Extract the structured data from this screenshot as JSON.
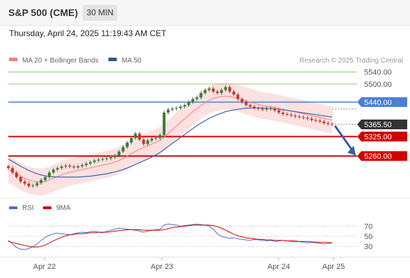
{
  "header": {
    "title": "S&P 500 (CME)",
    "timeframe": "30 MIN"
  },
  "timestamp": "Thursday, April 24, 2025 11:19:43 AM CET",
  "legend": [
    {
      "label": "MA 20 + Bollinger Bands",
      "color": "#f08080"
    },
    {
      "label": "MA 50",
      "color": "#2f5597"
    }
  ],
  "credit": "Research © 2025 Trading Central",
  "colors": {
    "up": "#3a7d3a",
    "down": "#c0392b",
    "band": "#f9c8c8",
    "ma20": "#f08080",
    "ma50": "#3c63b5",
    "support": "#d00000",
    "resistance": "#8ac96a",
    "pivot": "#4a7fd4",
    "current": "#333333"
  },
  "chart_data": [
    {
      "type": "line",
      "title": "S&P 500 (CME) 30 MIN",
      "x_ticks": [
        "Apr 22",
        "Apr 23",
        "Apr 24",
        "Apr 25"
      ],
      "ylim": [
        5120,
        5560
      ],
      "levels": [
        {
          "value": 5540.0,
          "label": "5540.00",
          "kind": "resistance"
        },
        {
          "value": 5500.0,
          "label": "5500.00",
          "kind": "resistance"
        },
        {
          "value": 5440.0,
          "label": "5440.00",
          "kind": "pivot"
        },
        {
          "value": 5365.5,
          "label": "5365.50",
          "kind": "current"
        },
        {
          "value": 5325.0,
          "label": "5325.00",
          "kind": "support"
        },
        {
          "value": 5260.0,
          "label": "5260.00",
          "kind": "support"
        }
      ],
      "close": [
        5220,
        5205,
        5190,
        5175,
        5168,
        5160,
        5162,
        5170,
        5180,
        5190,
        5205,
        5215,
        5220,
        5225,
        5228,
        5225,
        5222,
        5226,
        5230,
        5235,
        5240,
        5245,
        5248,
        5250,
        5252,
        5256,
        5262,
        5275,
        5290,
        5305,
        5320,
        5335,
        5315,
        5300,
        5312,
        5318,
        5320,
        5330,
        5405,
        5415,
        5418,
        5420,
        5425,
        5430,
        5440,
        5450,
        5455,
        5470,
        5480,
        5485,
        5475,
        5470,
        5480,
        5490,
        5475,
        5465,
        5450,
        5440,
        5430,
        5425,
        5420,
        5418,
        5415,
        5420,
        5418,
        5412,
        5405,
        5400,
        5398,
        5395,
        5392,
        5390,
        5388,
        5385,
        5380,
        5378,
        5375,
        5370,
        5367,
        5365.5
      ],
      "ma20": [
        5215,
        5208,
        5200,
        5192,
        5186,
        5180,
        5176,
        5174,
        5173,
        5175,
        5180,
        5186,
        5192,
        5197,
        5202,
        5206,
        5209,
        5212,
        5215,
        5218,
        5221,
        5224,
        5227,
        5230,
        5233,
        5236,
        5240,
        5245,
        5252,
        5260,
        5268,
        5276,
        5282,
        5288,
        5294,
        5300,
        5306,
        5312,
        5322,
        5335,
        5348,
        5360,
        5372,
        5384,
        5396,
        5408,
        5418,
        5428,
        5438,
        5447,
        5452,
        5456,
        5458,
        5460,
        5458,
        5455,
        5452,
        5448,
        5444,
        5440,
        5436,
        5432,
        5428,
        5426,
        5424,
        5422,
        5419,
        5416,
        5413,
        5410,
        5407,
        5404,
        5401,
        5398,
        5395,
        5392,
        5389,
        5386,
        5383,
        5380
      ],
      "ma50": [
        5250,
        5242,
        5234,
        5226,
        5219,
        5212,
        5206,
        5201,
        5197,
        5194,
        5192,
        5191,
        5190,
        5190,
        5190,
        5190,
        5190,
        5190,
        5191,
        5192,
        5193,
        5195,
        5197,
        5199,
        5201,
        5204,
        5207,
        5211,
        5215,
        5220,
        5226,
        5232,
        5238,
        5244,
        5250,
        5257,
        5264,
        5272,
        5282,
        5292,
        5302,
        5312,
        5322,
        5332,
        5342,
        5352,
        5361,
        5370,
        5378,
        5386,
        5392,
        5398,
        5403,
        5408,
        5411,
        5414,
        5416,
        5418,
        5419,
        5420,
        5420,
        5420,
        5420,
        5419,
        5418,
        5417,
        5416,
        5414,
        5412,
        5410,
        5408,
        5406,
        5404,
        5402,
        5400,
        5398,
        5396,
        5394,
        5392,
        5390
      ],
      "bb_width": 45
    },
    {
      "type": "line",
      "title": "RSI",
      "series_names": [
        "RSI",
        "9MA"
      ],
      "colors": [
        "#4a6fd4",
        "#d00000"
      ],
      "ylim": [
        20,
        80
      ],
      "y_ticks": [
        "70",
        "50",
        "30"
      ],
      "rsi": [
        42,
        35,
        28,
        25,
        24,
        26,
        30,
        35,
        42,
        48,
        52,
        55,
        56,
        55,
        54,
        53,
        55,
        57,
        58,
        57,
        59,
        60,
        58,
        57,
        60,
        62,
        64,
        66,
        65,
        64,
        63,
        62,
        60,
        58,
        60,
        62,
        63,
        64,
        72,
        74,
        73,
        72,
        70,
        71,
        72,
        73,
        74,
        73,
        72,
        70,
        64,
        55,
        50,
        48,
        46,
        47,
        45,
        44,
        43,
        42,
        44,
        43,
        42,
        41,
        42,
        40,
        41,
        42,
        41,
        40,
        39,
        40,
        38,
        37,
        38,
        37,
        36,
        35,
        36,
        37
      ],
      "ma9": [
        40,
        38,
        36,
        34,
        32,
        30,
        29,
        29,
        30,
        33,
        37,
        41,
        45,
        48,
        51,
        53,
        54,
        55,
        55,
        56,
        57,
        57,
        58,
        58,
        58,
        59,
        60,
        61,
        62,
        63,
        63,
        63,
        63,
        62,
        62,
        62,
        62,
        62,
        63,
        65,
        67,
        68,
        69,
        70,
        71,
        72,
        72,
        72,
        72,
        72,
        71,
        69,
        66,
        62,
        58,
        54,
        51,
        49,
        47,
        46,
        45,
        44,
        44,
        43,
        43,
        42,
        42,
        42,
        41,
        41,
        41,
        40,
        40,
        40,
        39,
        39,
        38,
        38,
        38,
        37
      ]
    }
  ]
}
